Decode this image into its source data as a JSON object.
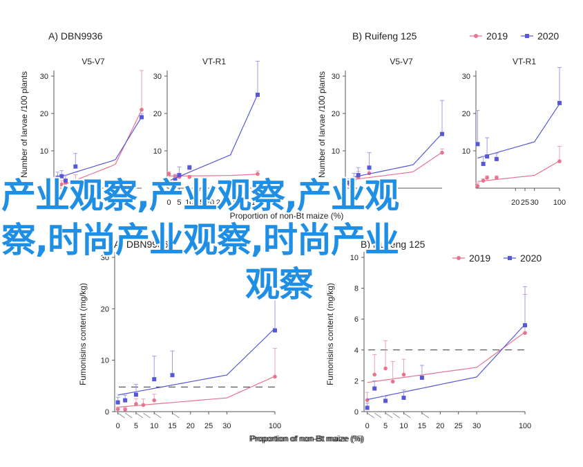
{
  "colors": {
    "c2019": "#e8728f",
    "c2020": "#5658d8",
    "err2019": "#f0a0b4",
    "err2020": "#9a9ce8",
    "axis": "#555555",
    "text": "#222222",
    "overlay": "#1f8fe6"
  },
  "legend": [
    {
      "label": "2019",
      "marker": "circle"
    },
    {
      "label": "2020",
      "marker": "square"
    }
  ],
  "overlay_lines": [
    "产业观察,产业观察,产业观",
    "察,时尚产业观察,时尚产业",
    "观察"
  ],
  "chart_data": [
    {
      "id": "top-a-v5",
      "type": "line",
      "group_title": "A) DBN9936",
      "subtitle": "V5-V7",
      "ylabel": "Number of larvae /100 plants",
      "ylim": [
        0,
        30
      ],
      "yticks": [
        "10",
        "20",
        "30"
      ],
      "xticks": [],
      "series": [
        {
          "name": "2019",
          "x": [
            1,
            3,
            5,
            10,
            100
          ],
          "y": [
            0.2,
            1.0,
            1.4,
            1.6,
            21.0
          ],
          "err": [
            1.0,
            1.0,
            2.0,
            2.0,
            10.5
          ]
        },
        {
          "name": "2020",
          "x": [
            1,
            3,
            5,
            10,
            100
          ],
          "y": [
            2.8,
            3.2,
            2.0,
            5.8,
            19.0
          ],
          "err": [
            1.5,
            1.5,
            1.5,
            3.5,
            1.0
          ]
        }
      ]
    },
    {
      "id": "top-a-vt",
      "type": "line",
      "subtitle": "VT-R1",
      "ylim": [
        0,
        30
      ],
      "yticks": [
        "10",
        "20",
        "30"
      ],
      "xticks": [
        "0",
        "5",
        "10",
        "15",
        "20",
        "25",
        "30",
        "100"
      ],
      "xlabel": "Proportion of non-Bt maize (%)",
      "series": [
        {
          "name": "2019",
          "x": [
            0,
            3,
            5,
            10,
            100
          ],
          "y": [
            3.8,
            3.2,
            3.0,
            3.0,
            3.8
          ],
          "err": [
            0.6,
            0.5,
            0.4,
            0.4,
            0.8
          ]
        },
        {
          "name": "2020",
          "x": [
            0,
            3,
            5,
            10,
            100
          ],
          "y": [
            1.0,
            2.2,
            3.5,
            5.5,
            25.0
          ],
          "err": [
            1.0,
            1.2,
            2.2,
            0.6,
            9.0
          ]
        }
      ]
    },
    {
      "id": "top-b-v5",
      "type": "line",
      "group_title": "B) Ruifeng 125",
      "subtitle": "V5-V7",
      "ylabel": "Number of larvae /100 plants",
      "ylim": [
        0,
        30
      ],
      "yticks": [
        "10",
        "20",
        "30"
      ],
      "xticks": [],
      "series": [
        {
          "name": "2019",
          "x": [
            1,
            3,
            5,
            10,
            100
          ],
          "y": [
            1.0,
            2.0,
            3.0,
            4.0,
            9.5
          ],
          "err": [
            1.0,
            1.0,
            1.5,
            1.5,
            1.0
          ]
        },
        {
          "name": "2020",
          "x": [
            1,
            3,
            5,
            10,
            100
          ],
          "y": [
            1.5,
            2.5,
            3.5,
            5.5,
            14.5
          ],
          "err": [
            1.0,
            1.5,
            2.0,
            4.0,
            9.0
          ]
        }
      ]
    },
    {
      "id": "top-b-vt",
      "type": "line",
      "subtitle": "VT-R1",
      "ylim": [
        0,
        30
      ],
      "yticks": [
        "10",
        "20",
        "30"
      ],
      "xticks": [
        "20",
        "25",
        "30",
        "100"
      ],
      "series": [
        {
          "name": "2019",
          "x": [
            0,
            3,
            5,
            10,
            100
          ],
          "y": [
            0.6,
            2.0,
            2.8,
            2.8,
            7.2
          ],
          "err": [
            0.8,
            0.5,
            0.5,
            0.5,
            4.0
          ]
        },
        {
          "name": "2020",
          "x": [
            0,
            3,
            5,
            10,
            100
          ],
          "y": [
            11.8,
            6.5,
            8.5,
            7.8,
            22.8
          ],
          "err": [
            9.0,
            2.0,
            5.0,
            1.5,
            9.5
          ]
        }
      ]
    },
    {
      "id": "bottom-a",
      "type": "line",
      "group_title": "A) DBN9936",
      "ylabel": "Fumonisins content (mg/kg)",
      "xlabel": "Proportion of non-Bt maize (%)",
      "ylim": [
        0,
        30
      ],
      "yticks": [
        "0",
        "10",
        "20",
        "30"
      ],
      "xticks": [
        "0",
        "5",
        "10",
        "15",
        "20",
        "25",
        "30",
        "100"
      ],
      "threshold": 4.8,
      "series": [
        {
          "name": "2019",
          "x": [
            0,
            2,
            5,
            7,
            10,
            100
          ],
          "y": [
            0.5,
            0.4,
            1.5,
            1.3,
            2.2,
            6.8
          ],
          "err": [
            0.4,
            0.4,
            1.0,
            1.2,
            1.2,
            5.5
          ]
        },
        {
          "name": "2020",
          "x": [
            0,
            2,
            5,
            10,
            15,
            100
          ],
          "y": [
            1.8,
            2.2,
            3.3,
            6.3,
            7.1,
            15.8
          ],
          "err": [
            1.0,
            1.0,
            2.0,
            4.5,
            4.7,
            8.5
          ]
        }
      ]
    },
    {
      "id": "bottom-b",
      "type": "line",
      "group_title": "B) Ruifeng 125",
      "ylabel": "Fumonisins content (mg/kg)",
      "xlabel": "Proportion of non-Bt maize (%)",
      "ylim": [
        0,
        10
      ],
      "yticks": [
        "0",
        "2",
        "4",
        "6",
        "8",
        "10"
      ],
      "xticks": [
        "0",
        "5",
        "10",
        "15",
        "20",
        "25",
        "30",
        "100"
      ],
      "threshold": 4.0,
      "series": [
        {
          "name": "2019",
          "x": [
            0,
            2,
            5,
            7,
            10,
            100
          ],
          "y": [
            0.75,
            2.4,
            2.8,
            1.95,
            2.4,
            5.1
          ],
          "err": [
            0.5,
            1.3,
            1.8,
            1.3,
            1.0,
            2.5
          ]
        },
        {
          "name": "2020",
          "x": [
            0,
            2,
            5,
            10,
            15,
            100
          ],
          "y": [
            0.25,
            1.5,
            0.7,
            0.9,
            2.2,
            5.6
          ],
          "err": [
            0.3,
            0.5,
            0.3,
            0.5,
            0.8,
            2.5
          ]
        }
      ]
    }
  ]
}
